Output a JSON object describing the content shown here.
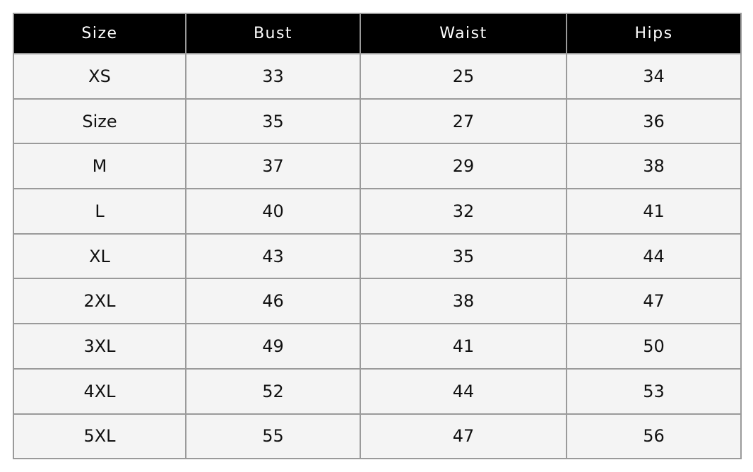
{
  "table": {
    "header": [
      "Size",
      "Bust",
      "Waist",
      "Hips"
    ],
    "rows": [
      [
        "XS",
        "33",
        "25",
        "34"
      ],
      [
        "Size",
        "35",
        "27",
        "36"
      ],
      [
        "M",
        "37",
        "29",
        "38"
      ],
      [
        "L",
        "40",
        "32",
        "41"
      ],
      [
        "XL",
        "43",
        "35",
        "44"
      ],
      [
        "2XL",
        "46",
        "38",
        "47"
      ],
      [
        "3XL",
        "49",
        "41",
        "50"
      ],
      [
        "4XL",
        "52",
        "44",
        "53"
      ],
      [
        "5XL",
        "55",
        "47",
        "56"
      ]
    ]
  }
}
